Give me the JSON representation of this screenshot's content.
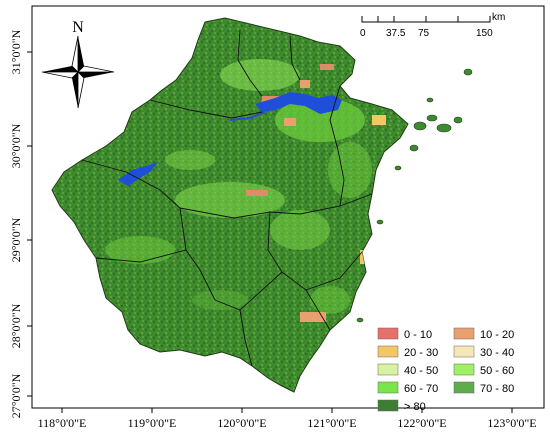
{
  "map": {
    "x_ticks": [
      "118°0'0\"E",
      "119°0'0\"E",
      "120°0'0\"E",
      "121°0'0\"E",
      "122°0'0\"E",
      "123°0'0\"E"
    ],
    "y_ticks": [
      "31°0'0\"N",
      "30°0'0\"N",
      "29°0'0\"N",
      "28°0'0\"N",
      "27°0'0\"N"
    ],
    "north_label": "N",
    "colors": {
      "land_base": "#3f8a2e",
      "land_dark": "#2f6b22",
      "land_light": "#6ccb3c",
      "water": "#1f4fd8",
      "urban": "#e08a6a"
    }
  },
  "scale_bar": {
    "labels": [
      "0",
      "37.5",
      "75",
      "150"
    ],
    "unit": "km"
  },
  "legend": {
    "items": [
      {
        "label": "0 - 10",
        "color": "#e8706a"
      },
      {
        "label": "10 - 20",
        "color": "#e9a070"
      },
      {
        "label": "20 - 30",
        "color": "#f4c766"
      },
      {
        "label": "30 - 40",
        "color": "#f6e7b6"
      },
      {
        "label": "40 - 50",
        "color": "#d7f2a0"
      },
      {
        "label": "50 - 60",
        "color": "#9ff064"
      },
      {
        "label": "60 - 70",
        "color": "#78e64a"
      },
      {
        "label": "70 - 80",
        "color": "#5fad4a"
      },
      {
        "label": "> 80",
        "color": "#3f7d36"
      }
    ]
  }
}
